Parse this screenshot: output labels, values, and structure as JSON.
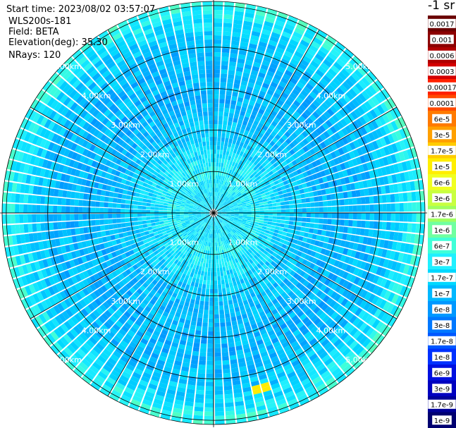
{
  "header": {
    "start_time": "Start time: 2023/08/02 03:57:07",
    "device": "WLS200s-181",
    "field": "Field: BETA",
    "elevation": "Elevation(deg): 35.30",
    "nrays": "NRays: 120"
  },
  "colorbar": {
    "title": "-1 sr",
    "ticks": [
      "0.0017",
      "0.001",
      "0.0006",
      "0.0003",
      "0.00017",
      "0.0001",
      "6e-5",
      "3e-5",
      "1.7e-5",
      "1e-5",
      "6e-6",
      "3e-6",
      "1.7e-6",
      "1e-6",
      "6e-7",
      "3e-7",
      "1.7e-7",
      "1e-7",
      "6e-8",
      "3e-8",
      "1.7e-8",
      "1e-8",
      "6e-9",
      "3e-9",
      "1.7e-9",
      "1e-9"
    ],
    "colors": [
      "#6b0000",
      "#8c0000",
      "#b00000",
      "#d40000",
      "#ff2000",
      "#ff4a00",
      "#ff7a00",
      "#ffa000",
      "#ffcc00",
      "#ffee00",
      "#f0ff20",
      "#c8ff40",
      "#a0ff60",
      "#70ffa0",
      "#40ffd8",
      "#20f0ff",
      "#00d8ff",
      "#00b8ff",
      "#0098ff",
      "#0078ff",
      "#0058ff",
      "#0030ff",
      "#0010e0",
      "#0000c0",
      "#00009a",
      "#000070"
    ]
  },
  "chart_data": {
    "type": "heatmap",
    "projection": "polar-ppi",
    "field": "BETA",
    "units": "-1 sr",
    "n_rays": 120,
    "elevation_deg": 35.3,
    "range_rings_km": [
      1.0,
      2.0,
      3.0,
      4.0,
      5.0
    ],
    "ring_labels": [
      "1.00km",
      "2.00km",
      "3.00km",
      "4.00km",
      "5.00km"
    ],
    "max_range_km": 5.1,
    "spokes_deg": [
      0,
      30,
      60,
      90,
      120,
      150,
      180,
      210,
      240,
      270,
      300,
      330
    ],
    "value_range": [
      1e-09,
      0.0017
    ],
    "profile_by_range": [
      {
        "range_km": 0.3,
        "value": 2e-07
      },
      {
        "range_km": 1.0,
        "value": 3e-07
      },
      {
        "range_km": 2.0,
        "value": 1.3e-07
      },
      {
        "range_km": 3.0,
        "value": 9e-08
      },
      {
        "range_km": 4.0,
        "value": 1.1e-07
      },
      {
        "range_km": 4.6,
        "value": 2e-07
      },
      {
        "range_km": 5.0,
        "value": 4e-07
      }
    ],
    "hotspots": [
      {
        "azimuth_deg": 165,
        "range_km": 4.35,
        "value": 1e-05
      }
    ],
    "grid": true
  }
}
